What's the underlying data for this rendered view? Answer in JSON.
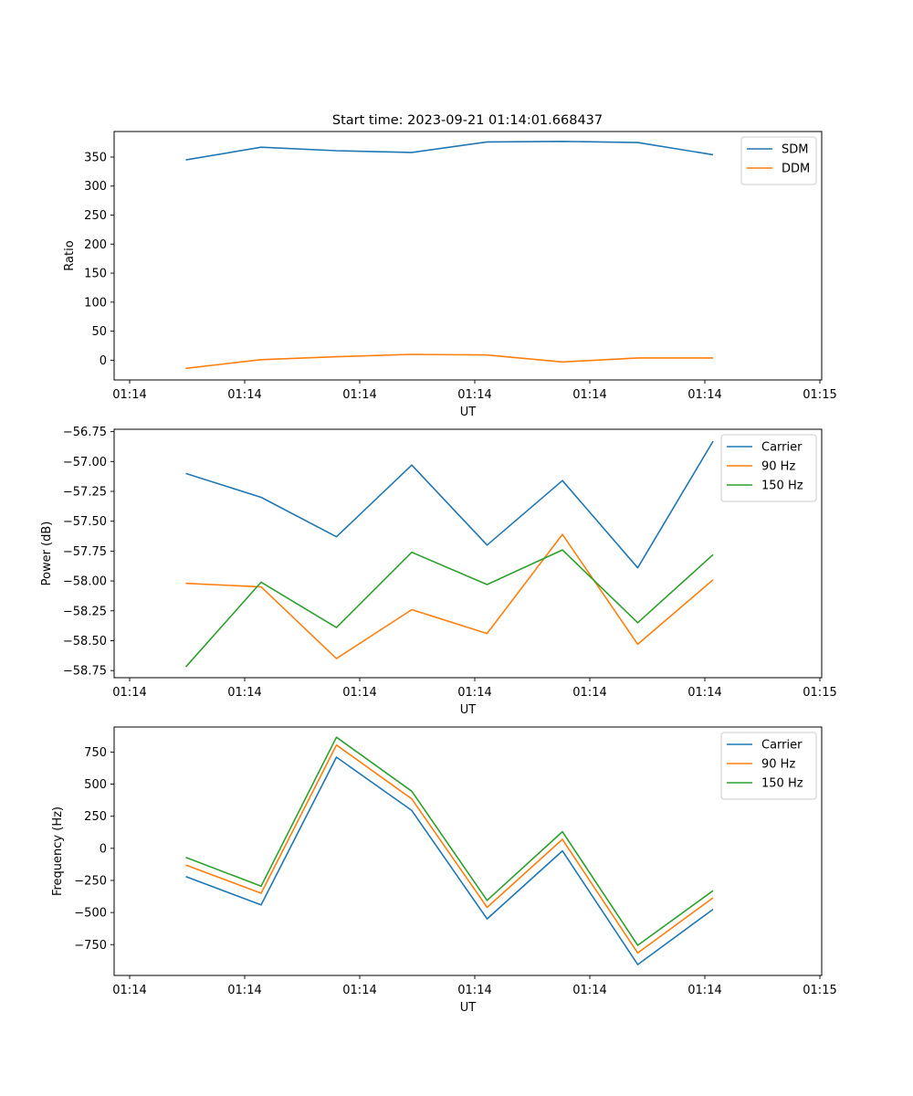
{
  "figure": {
    "title": "Start time: 2023-09-21 01:14:01.668437"
  },
  "chart_data": [
    {
      "type": "line",
      "xlabel": "UT",
      "ylabel": "Ratio",
      "x_tick_labels": [
        "01:14",
        "01:14",
        "01:14",
        "01:14",
        "01:14",
        "01:14",
        "01:15"
      ],
      "y_ticks": [
        0,
        50,
        100,
        150,
        200,
        250,
        300,
        350
      ],
      "ylim": [
        -34,
        394
      ],
      "legend_position": "top-right",
      "series": [
        {
          "name": "SDM",
          "color": "#1f77b4",
          "values": [
            345,
            367,
            361,
            358,
            376,
            377,
            375,
            354
          ]
        },
        {
          "name": "DDM",
          "color": "#ff7f0e",
          "values": [
            -14,
            1,
            6,
            10,
            9,
            -3,
            4,
            4
          ]
        }
      ]
    },
    {
      "type": "line",
      "xlabel": "UT",
      "ylabel": "Power (dB)",
      "x_tick_labels": [
        "01:14",
        "01:14",
        "01:14",
        "01:14",
        "01:14",
        "01:14",
        "01:15"
      ],
      "y_ticks": [
        -58.75,
        -58.5,
        -58.25,
        -58.0,
        -57.75,
        -57.5,
        -57.25,
        -57.0,
        -56.75
      ],
      "y_tick_labels": [
        "−58.75",
        "−58.50",
        "−58.25",
        "−58.00",
        "−57.75",
        "−57.50",
        "−57.25",
        "−57.00",
        "−56.75"
      ],
      "ylim": [
        -58.81,
        -56.73
      ],
      "legend_position": "top-right",
      "series": [
        {
          "name": "Carrier",
          "color": "#1f77b4",
          "values": [
            -57.1,
            -57.3,
            -57.63,
            -57.03,
            -57.7,
            -57.16,
            -57.89,
            -56.83
          ]
        },
        {
          "name": "90 Hz",
          "color": "#ff7f0e",
          "values": [
            -58.02,
            -58.05,
            -58.65,
            -58.24,
            -58.44,
            -57.61,
            -58.53,
            -57.99
          ]
        },
        {
          "name": "150 Hz",
          "color": "#2ca02c",
          "values": [
            -58.72,
            -58.01,
            -58.39,
            -57.76,
            -58.03,
            -57.74,
            -58.35,
            -57.78
          ]
        }
      ]
    },
    {
      "type": "line",
      "xlabel": "UT",
      "ylabel": "Frequency (Hz)",
      "x_tick_labels": [
        "01:14",
        "01:14",
        "01:14",
        "01:14",
        "01:14",
        "01:14",
        "01:15"
      ],
      "y_ticks": [
        -750,
        -500,
        -250,
        0,
        250,
        500,
        750
      ],
      "y_tick_labels": [
        "−750",
        "−500",
        "−250",
        "0",
        "250",
        "500",
        "750"
      ],
      "ylim": [
        -990,
        945
      ],
      "legend_position": "top-right",
      "series": [
        {
          "name": "Carrier",
          "color": "#1f77b4",
          "values": [
            -220,
            -440,
            710,
            295,
            -550,
            -20,
            -905,
            -475
          ]
        },
        {
          "name": "90 Hz",
          "color": "#ff7f0e",
          "values": [
            -130,
            -350,
            805,
            385,
            -460,
            70,
            -815,
            -385
          ]
        },
        {
          "name": "150 Hz",
          "color": "#2ca02c",
          "values": [
            -70,
            -295,
            865,
            445,
            -405,
            130,
            -755,
            -330
          ]
        }
      ]
    }
  ]
}
